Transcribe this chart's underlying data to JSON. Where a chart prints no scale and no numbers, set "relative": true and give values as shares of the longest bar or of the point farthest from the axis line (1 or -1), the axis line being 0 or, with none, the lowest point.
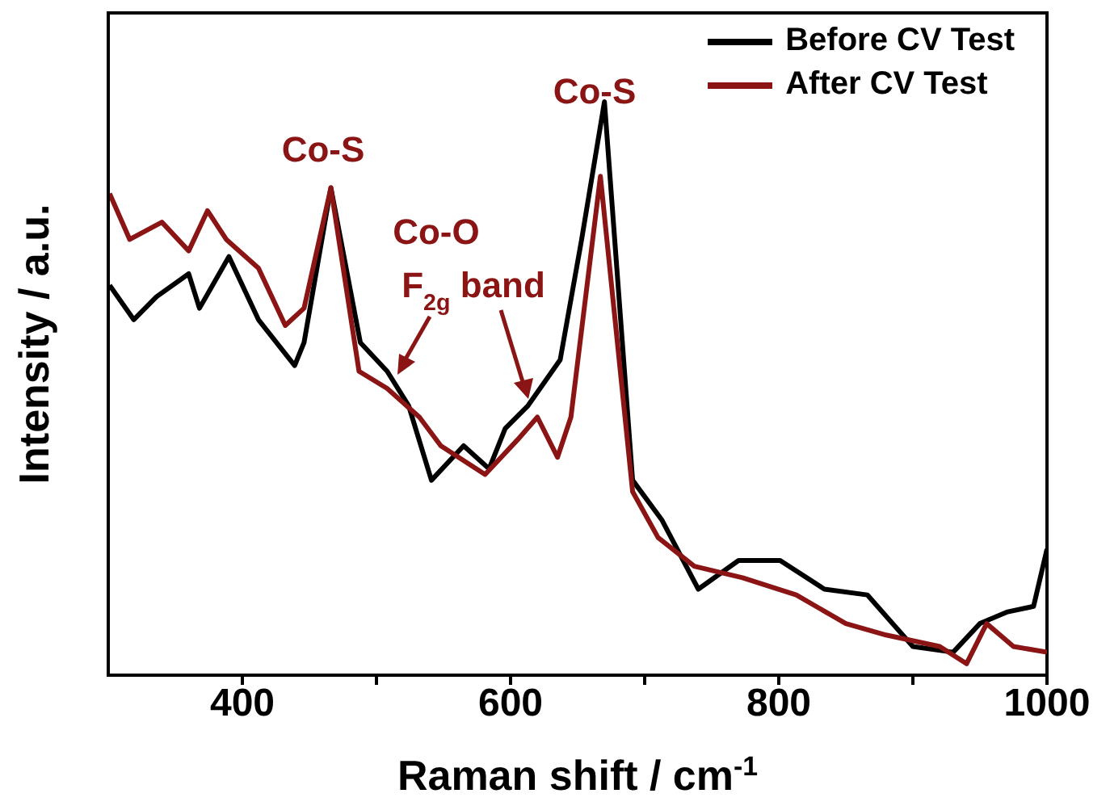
{
  "chart_data": {
    "type": "line",
    "xlabel": "Raman shift / cm$^{-1}$",
    "ylabel": "Intensity / a.u.",
    "relative": true,
    "xlim": [
      300,
      1000
    ],
    "xticks": [
      400,
      {
        "value": 500,
        "label": null
      },
      600,
      {
        "value": 700,
        "label": null
      },
      800,
      {
        "value": 900,
        "label": null
      },
      1000
    ],
    "legend": "top right",
    "grid": false,
    "marker": "none",
    "line_style": "solid",
    "annotations": [
      "Co-S",
      "Co-S",
      "Co-O",
      "F$_{2g}$ band"
    ],
    "series": [
      {
        "name": "Before CV Test",
        "color": "#000000",
        "x": [
          301,
          319,
          336,
          360,
          368,
          390,
          412,
          439,
          446,
          466,
          488,
          508,
          524,
          541,
          565,
          584,
          596,
          613,
          637,
          653,
          670,
          677,
          691,
          713,
          740,
          770,
          801,
          834,
          866,
          900,
          930,
          950,
          970,
          990,
          1000
        ],
        "values": [
          0.68,
          0.62,
          0.66,
          0.7,
          0.64,
          0.73,
          0.62,
          0.54,
          0.58,
          0.85,
          0.58,
          0.53,
          0.47,
          0.34,
          0.4,
          0.36,
          0.43,
          0.47,
          0.55,
          0.76,
          1,
          0.78,
          0.34,
          0.27,
          0.15,
          0.2,
          0.2,
          0.15,
          0.14,
          0.05,
          0.04,
          0.09,
          0.11,
          0.12,
          0.22
        ]
      },
      {
        "name": "After CV Test",
        "color": "#8b1414",
        "x": [
          301,
          316,
          340,
          360,
          374,
          388,
          412,
          432,
          446,
          466,
          487,
          508,
          532,
          548,
          581,
          605,
          620,
          635,
          645,
          667,
          691,
          710,
          737,
          773,
          813,
          850,
          880,
          920,
          940,
          955,
          975,
          1000
        ],
        "values": [
          0.84,
          0.76,
          0.79,
          0.74,
          0.81,
          0.76,
          0.71,
          0.61,
          0.64,
          0.85,
          0.53,
          0.5,
          0.45,
          0.4,
          0.35,
          0.41,
          0.45,
          0.38,
          0.45,
          0.87,
          0.32,
          0.24,
          0.19,
          0.17,
          0.14,
          0.09,
          0.07,
          0.05,
          0.02,
          0.09,
          0.05,
          0.04
        ]
      }
    ]
  }
}
